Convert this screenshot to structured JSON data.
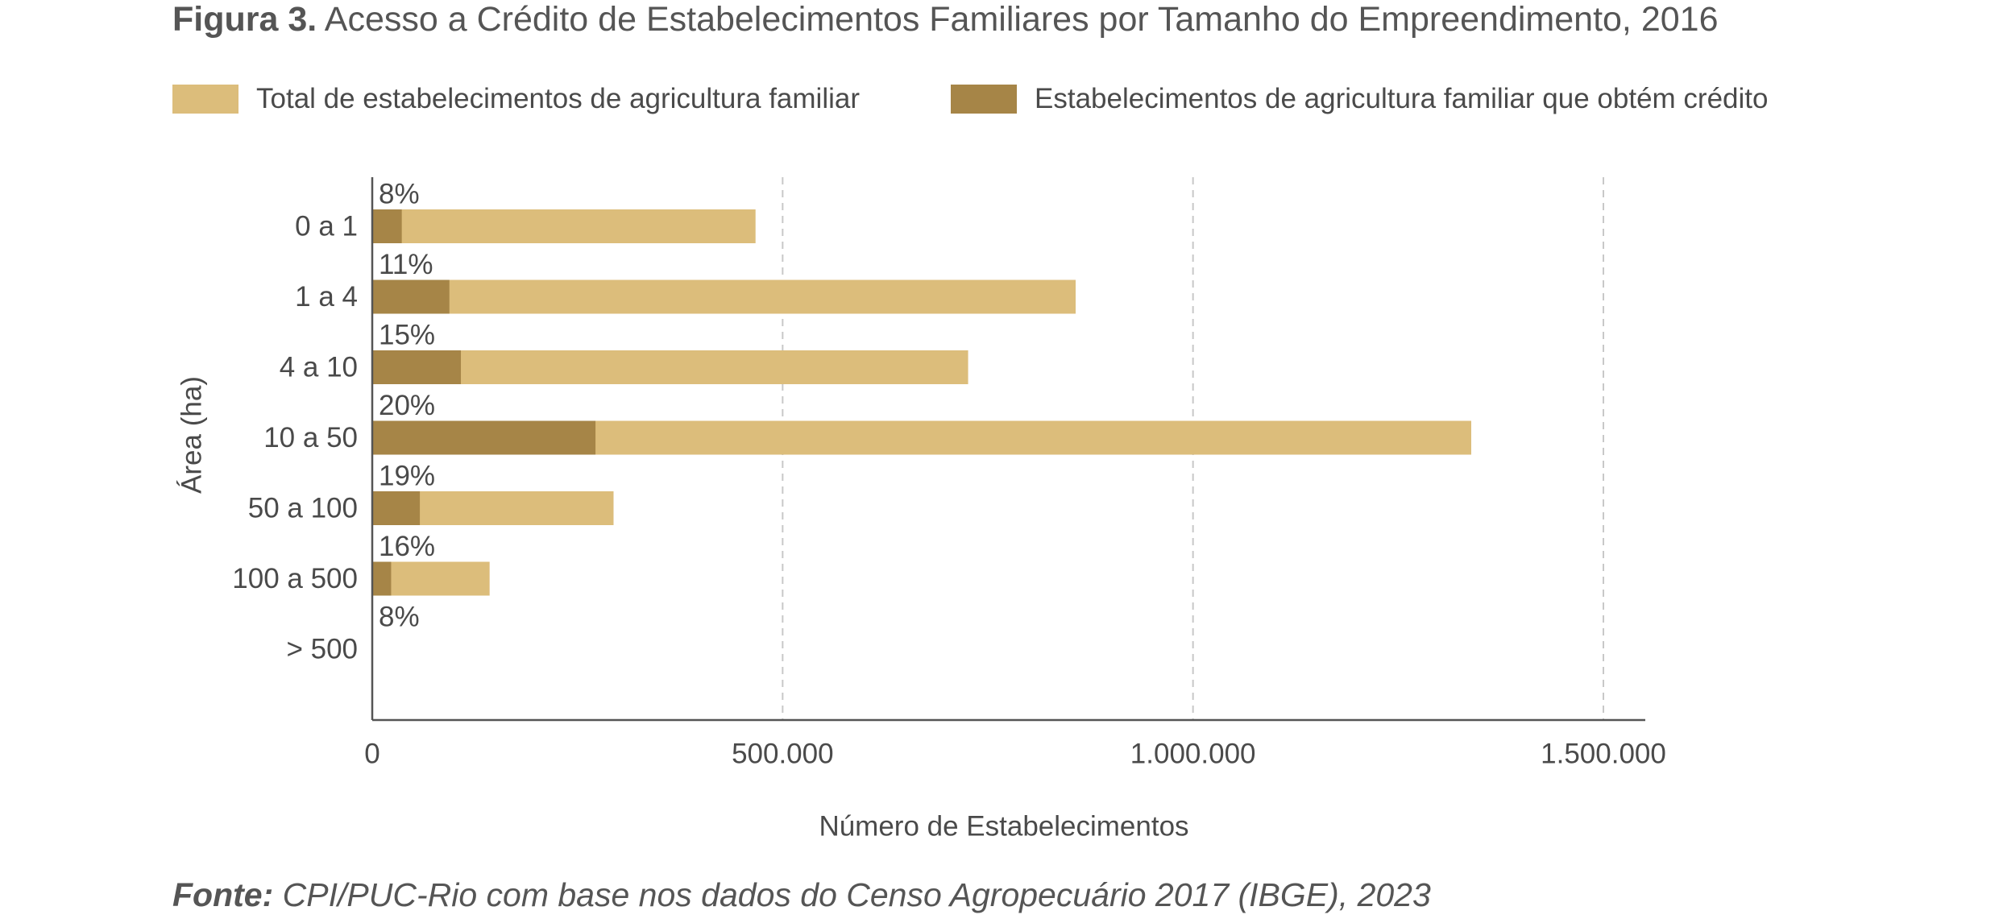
{
  "figure_label": "Figura 3.",
  "title": "Acesso a Crédito de Estabelecimentos Familiares por Tamanho do Empreendimento, 2016",
  "source_label": "Fonte:",
  "source_text": "CPI/PUC-Rio com base nos dados do Censo Agropecuário 2017 (IBGE), 2023",
  "colors": {
    "total": "#dcbd7b",
    "credit": "#a68547",
    "axis": "#555555",
    "grid": "#c8c8c8",
    "text": "#4a4a4a"
  },
  "legend": [
    {
      "label": "Total de estabelecimentos de agricultura familiar",
      "color": "#dcbd7b"
    },
    {
      "label": "Estabelecimentos de agricultura familiar que obtém crédito",
      "color": "#a68547"
    }
  ],
  "chart_data": {
    "type": "bar",
    "orientation": "horizontal",
    "stacked": false,
    "ylabel": "Área (ha)",
    "xlabel": "Número de Estabelecimentos",
    "categories": [
      "0 a 1",
      "1 a 4",
      "4 a 10",
      "10 a 50",
      "50 a 100",
      "100 a 500",
      "> 500"
    ],
    "series": [
      {
        "name": "Total de estabelecimentos de agricultura familiar",
        "values": [
          467000,
          857000,
          726000,
          1339000,
          294000,
          143000,
          0
        ]
      },
      {
        "name": "Estabelecimentos de agricultura familiar que obtém crédito",
        "values": [
          36000,
          94000,
          108000,
          272000,
          58000,
          23000,
          0
        ]
      }
    ],
    "data_labels": [
      "8%",
      "11%",
      "15%",
      "20%",
      "19%",
      "16%",
      "8%"
    ],
    "xlim": [
      0,
      1500000
    ],
    "xticks": [
      0,
      500000,
      1000000,
      1500000
    ],
    "xtick_labels": [
      "0",
      "500.000",
      "1.000.000",
      "1.500.000"
    ],
    "grid": "vertical dashed"
  }
}
